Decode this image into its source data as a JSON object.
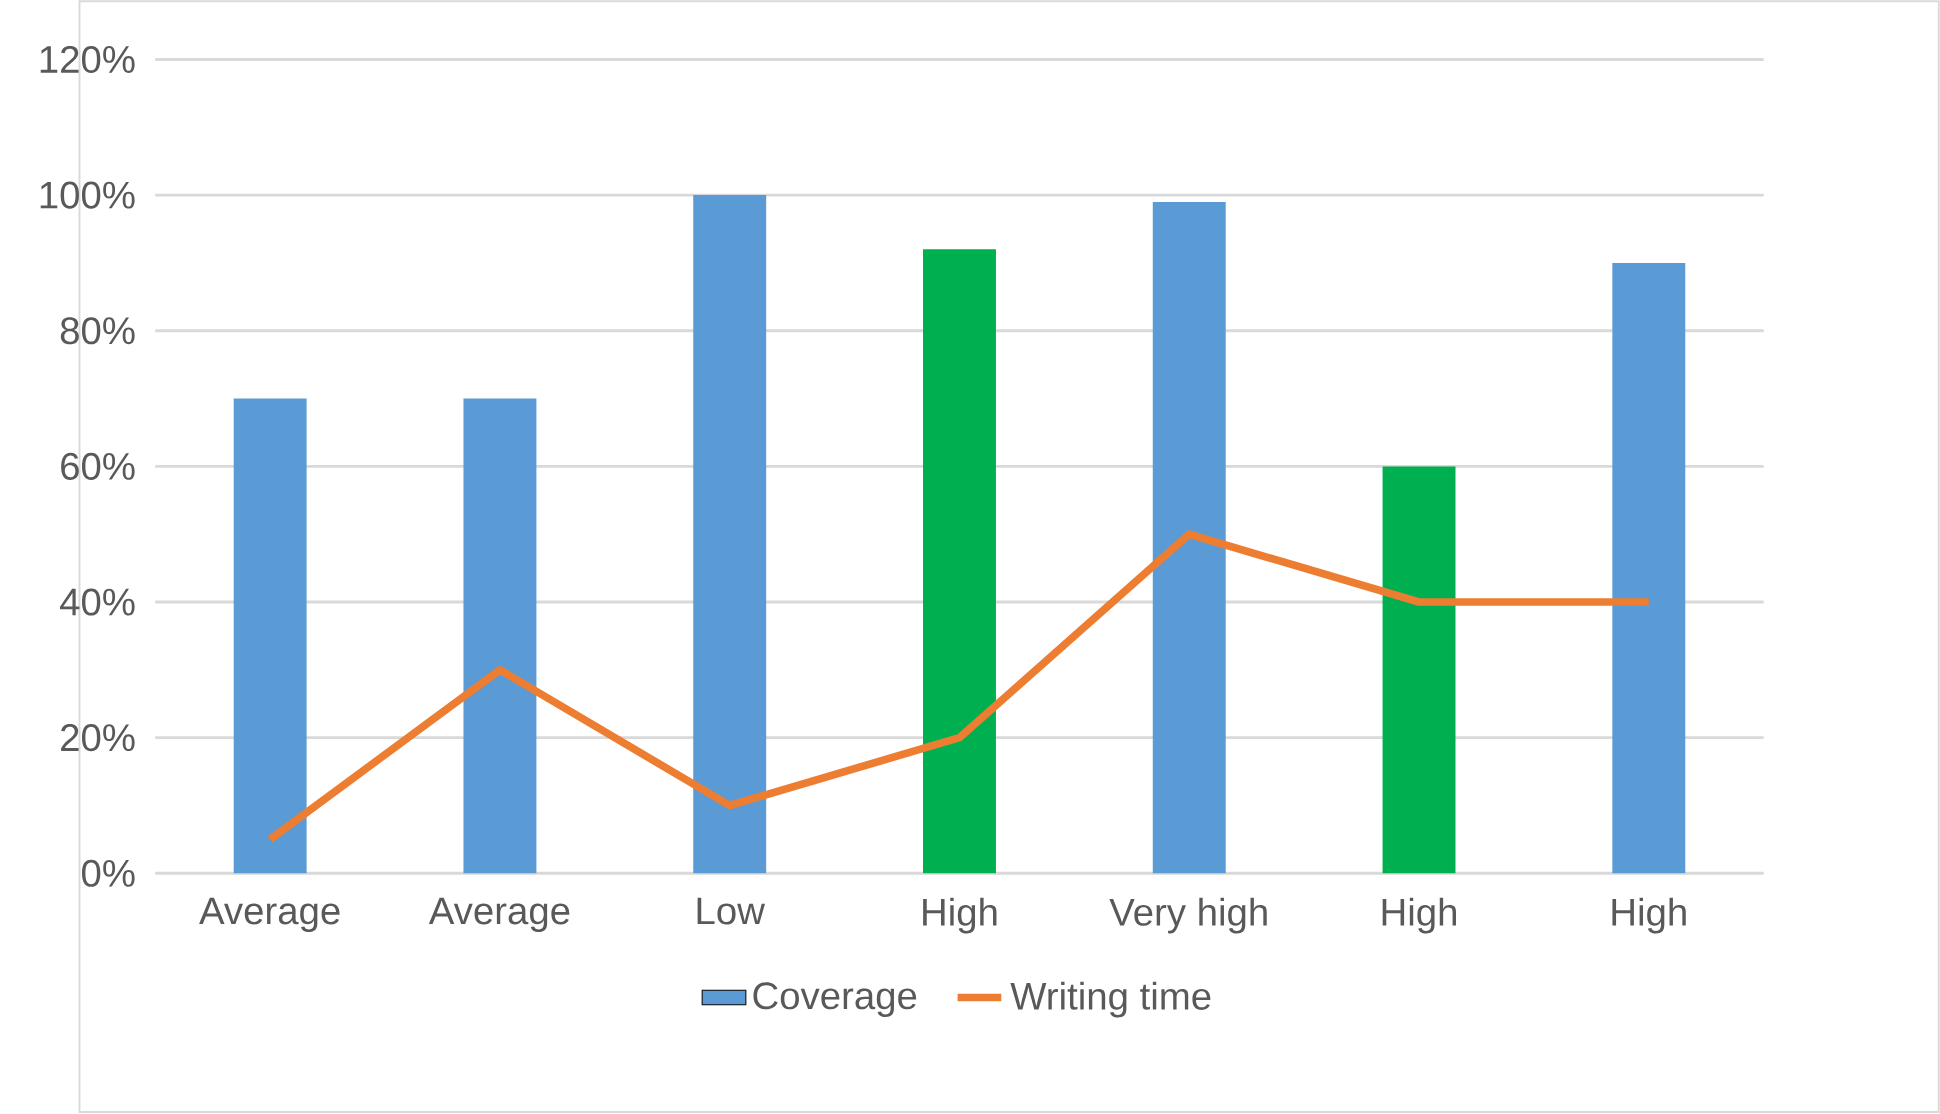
{
  "chart_data": {
    "type": "bar",
    "categories": [
      "Average",
      "Average",
      "Low",
      "High",
      "Very high",
      "High",
      "High"
    ],
    "series": [
      {
        "name": "Coverage",
        "color": "#5b9bd5",
        "colors": [
          "#5b9bd5",
          "#5b9bd5",
          "#5b9bd5",
          "#00b050",
          "#5b9bd5",
          "#00b050",
          "#5b9bd5"
        ],
        "values": [
          70,
          70,
          100,
          92,
          99,
          60,
          90
        ]
      },
      {
        "name": "Writing time",
        "type": "line",
        "color": "#ed7d31",
        "values": [
          5,
          30,
          10,
          20,
          50,
          40,
          40
        ]
      }
    ],
    "ylim": [
      0,
      120
    ],
    "yticks": [
      {
        "value": 0,
        "label": "0%"
      },
      {
        "value": 20,
        "label": "20%"
      },
      {
        "value": 40,
        "label": "40%"
      },
      {
        "value": 60,
        "label": "60%"
      },
      {
        "value": 80,
        "label": "80%"
      },
      {
        "value": 100,
        "label": "100%"
      },
      {
        "value": 120,
        "label": "120%"
      }
    ],
    "grid": "y",
    "legend": "bottom"
  }
}
